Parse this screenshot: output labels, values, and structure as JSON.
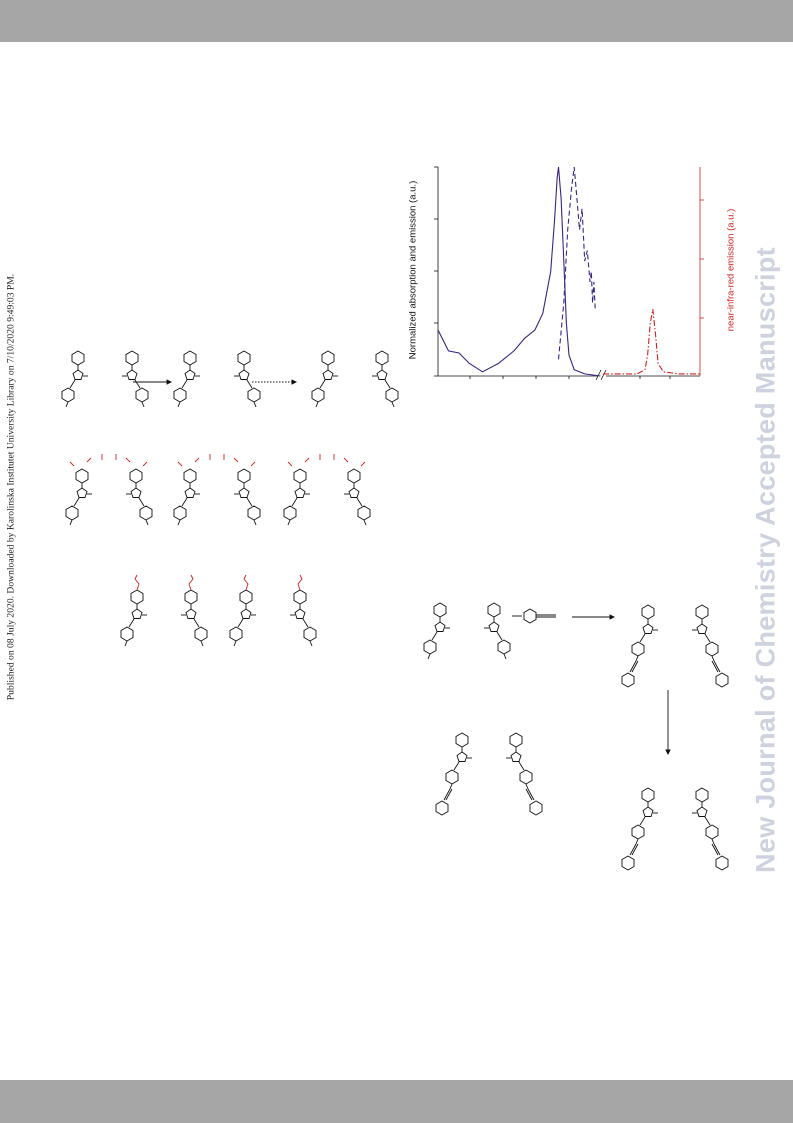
{
  "header": {
    "background": "#a6a6a6"
  },
  "footer": {
    "background": "#a6a6a6"
  },
  "watermark": {
    "text": "New Journal of Chemistry Accepted Manuscript",
    "color": "#cdd2de"
  },
  "published_note": {
    "text": "Published on 08 July 2020. Downloaded by Karolinska Institutet University Library on 7/10/2020 9:49:03 PM."
  },
  "chart_data": {
    "type": "line",
    "ylabel": "Normalized absorption and emission (a.u.)",
    "y2label": "near-infra-red emission (a.u.)",
    "y2_color": "#d42020",
    "axis_break": true,
    "series": [
      {
        "color": "#3a2480",
        "style": "solid",
        "points": [
          [
            0,
            0.22
          ],
          [
            0.04,
            0.12
          ],
          [
            0.08,
            0.11
          ],
          [
            0.12,
            0.06
          ],
          [
            0.17,
            0.02
          ],
          [
            0.23,
            0.06
          ],
          [
            0.29,
            0.12
          ],
          [
            0.33,
            0.18
          ],
          [
            0.37,
            0.22
          ],
          [
            0.4,
            0.3
          ],
          [
            0.43,
            0.5
          ],
          [
            0.445,
            0.75
          ],
          [
            0.455,
            0.95
          ],
          [
            0.46,
            1.0
          ],
          [
            0.47,
            0.85
          ],
          [
            0.48,
            0.55
          ],
          [
            0.49,
            0.25
          ],
          [
            0.5,
            0.1
          ],
          [
            0.52,
            0.03
          ],
          [
            0.56,
            0.01
          ],
          [
            0.62,
            0.0
          ]
        ]
      },
      {
        "color": "#3a2480",
        "style": "dashed",
        "points": [
          [
            0.46,
            0.08
          ],
          [
            0.48,
            0.35
          ],
          [
            0.495,
            0.7
          ],
          [
            0.51,
            0.9
          ],
          [
            0.52,
            1.0
          ],
          [
            0.53,
            0.85
          ],
          [
            0.54,
            0.7
          ],
          [
            0.55,
            0.8
          ],
          [
            0.56,
            0.55
          ],
          [
            0.57,
            0.6
          ],
          [
            0.58,
            0.45
          ],
          [
            0.585,
            0.5
          ],
          [
            0.59,
            0.35
          ],
          [
            0.595,
            0.45
          ],
          [
            0.6,
            0.32
          ]
        ]
      },
      {
        "color": "#d42020",
        "style": "dash-dot",
        "points": [
          [
            0.63,
            0.01
          ],
          [
            0.7,
            0.01
          ],
          [
            0.76,
            0.01
          ],
          [
            0.79,
            0.03
          ],
          [
            0.8,
            0.1
          ],
          [
            0.81,
            0.25
          ],
          [
            0.82,
            0.32
          ],
          [
            0.83,
            0.2
          ],
          [
            0.84,
            0.06
          ],
          [
            0.86,
            0.02
          ],
          [
            0.92,
            0.01
          ],
          [
            1.0,
            0.01
          ]
        ]
      }
    ]
  }
}
